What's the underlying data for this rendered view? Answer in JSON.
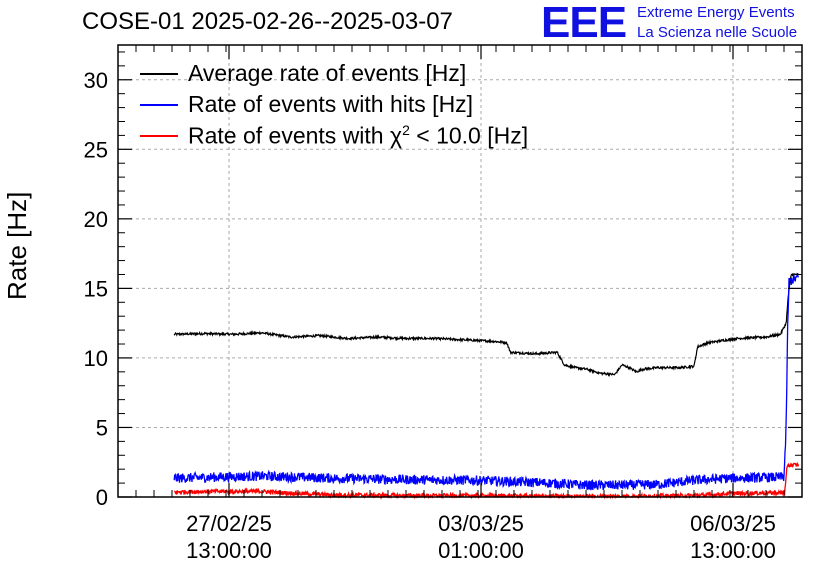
{
  "header": {
    "title": "COSE-01 2025-02-26--2025-03-07",
    "logo_mark": "EEE",
    "logo_line1": "Extreme Energy Events",
    "logo_line2": "La Scienza nelle Scuole"
  },
  "chart_data": {
    "type": "line",
    "title": "COSE-01 2025-02-26--2025-03-07",
    "xlabel": "",
    "ylabel": "Rate [Hz]",
    "ylim": [
      0,
      32.5
    ],
    "xlim": [
      0,
      9.5
    ],
    "x_unit": "days since 2025-02-26 00:00",
    "grid": true,
    "legend_position": "top-left",
    "y_ticks": [
      "0",
      "5",
      "10",
      "15",
      "20",
      "25",
      "30"
    ],
    "x_ticks": [
      {
        "value": 1.5417,
        "line1": "27/02/25",
        "line2": "13:00:00"
      },
      {
        "value": 5.0417,
        "line1": "03/03/25",
        "line2": "01:00:00"
      },
      {
        "value": 8.5417,
        "line1": "06/03/25",
        "line2": "13:00:00"
      }
    ],
    "series": [
      {
        "name": "Average rate of events [Hz]",
        "color": "#000000",
        "noise": 0.08,
        "x": [
          0.78,
          1.2,
          1.6,
          2.0,
          2.4,
          2.8,
          3.2,
          3.6,
          4.0,
          4.4,
          4.8,
          5.2,
          5.4,
          5.45,
          5.8,
          6.1,
          6.2,
          6.35,
          6.5,
          6.7,
          6.9,
          7.0,
          7.1,
          7.2,
          7.3,
          7.5,
          7.8,
          8.0,
          8.05,
          8.2,
          8.6,
          9.0,
          9.2,
          9.28,
          9.31,
          9.35,
          9.45
        ],
        "y": [
          11.7,
          11.75,
          11.7,
          11.8,
          11.5,
          11.6,
          11.4,
          11.5,
          11.4,
          11.4,
          11.3,
          11.2,
          11.1,
          10.4,
          10.3,
          10.4,
          9.5,
          9.3,
          9.2,
          8.9,
          8.8,
          9.5,
          9.3,
          9.0,
          9.2,
          9.3,
          9.3,
          9.4,
          10.8,
          11.1,
          11.4,
          11.5,
          11.7,
          12.5,
          14.5,
          16.0,
          16.0
        ]
      },
      {
        "name": "Rate of events with hits [Hz]",
        "color": "#0000ff",
        "noise": 0.35,
        "x": [
          0.78,
          1.5,
          2.0,
          3.0,
          4.0,
          5.0,
          6.0,
          6.5,
          7.0,
          7.5,
          8.0,
          8.5,
          9.0,
          9.25,
          9.28,
          9.3,
          9.32,
          9.45
        ],
        "y": [
          1.35,
          1.45,
          1.5,
          1.35,
          1.25,
          1.2,
          1.0,
          0.85,
          0.85,
          0.9,
          1.2,
          1.35,
          1.4,
          1.45,
          5.0,
          12.0,
          15.5,
          15.8
        ]
      },
      {
        "name": "Rate of events with χ² < 10.0 [Hz]",
        "color": "#ff0000",
        "noise": 0.15,
        "x": [
          0.78,
          1.2,
          2.0,
          2.5,
          3.0,
          4.0,
          5.0,
          6.0,
          7.0,
          8.0,
          8.5,
          9.0,
          9.26,
          9.29,
          9.31,
          9.45
        ],
        "y": [
          0.35,
          0.4,
          0.4,
          0.25,
          0.15,
          0.1,
          0.1,
          0.05,
          0.05,
          0.1,
          0.25,
          0.3,
          0.3,
          2.0,
          2.3,
          2.3
        ]
      }
    ]
  },
  "legend": {
    "item1": "Average rate of events [Hz]",
    "item2": "Rate of events with hits [Hz]",
    "item3_prefix": "Rate of events with ",
    "item3_symbol": "χ",
    "item3_sup": "2",
    "item3_suffix": " < 10.0 [Hz]"
  }
}
